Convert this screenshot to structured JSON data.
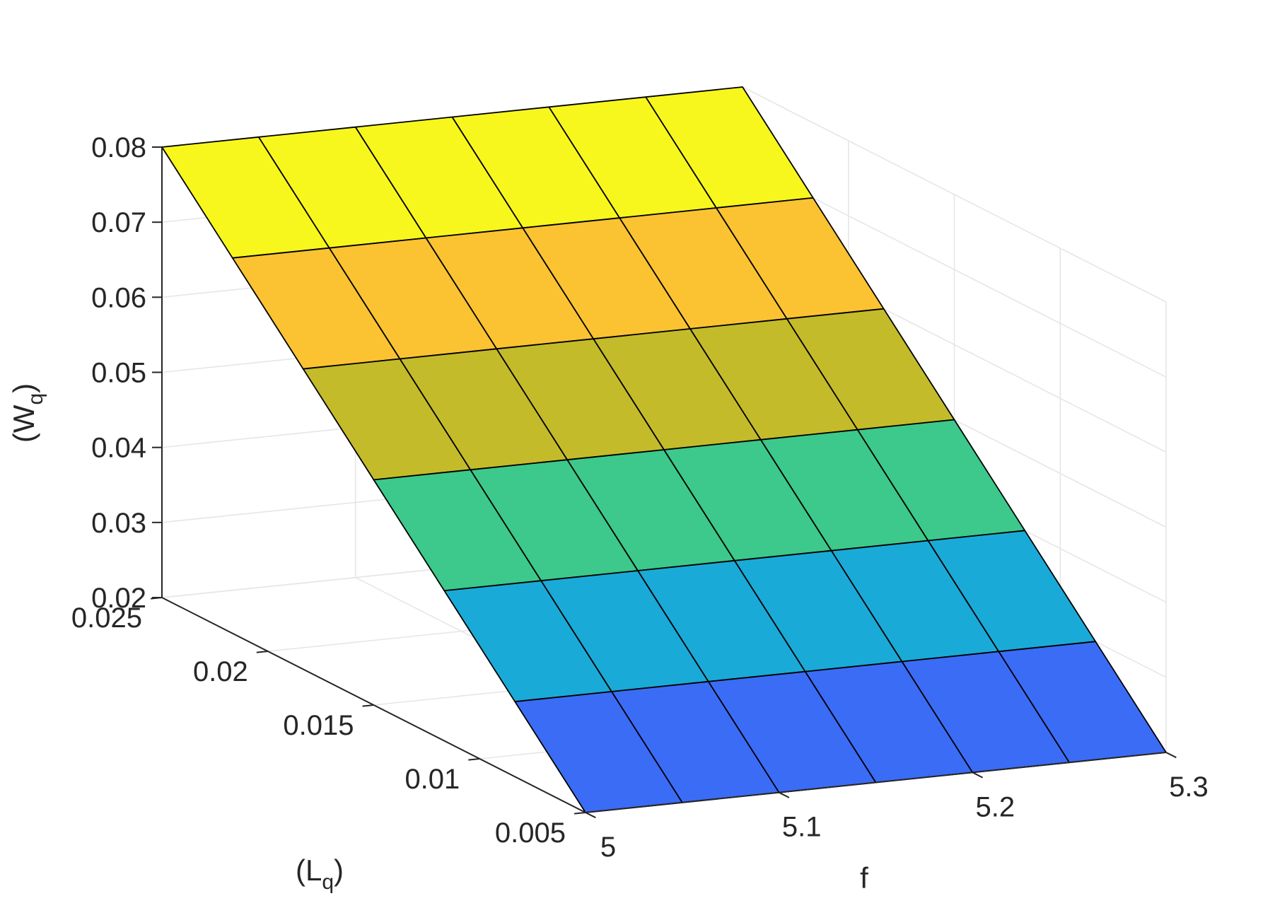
{
  "chart_data": {
    "type": "surface",
    "x": [
      5.0,
      5.05,
      5.1,
      5.15,
      5.2,
      5.25,
      5.3
    ],
    "y": [
      0.005,
      0.008333,
      0.011667,
      0.015,
      0.018333,
      0.021667,
      0.025
    ],
    "z": [
      [
        0.02,
        0.02,
        0.02,
        0.02,
        0.02,
        0.02,
        0.02
      ],
      [
        0.03,
        0.03,
        0.03,
        0.03,
        0.03,
        0.03,
        0.03
      ],
      [
        0.04,
        0.04,
        0.04,
        0.04,
        0.04,
        0.04,
        0.04
      ],
      [
        0.05,
        0.05,
        0.05,
        0.05,
        0.05,
        0.05,
        0.05
      ],
      [
        0.06,
        0.06,
        0.06,
        0.06,
        0.06,
        0.06,
        0.06
      ],
      [
        0.07,
        0.07,
        0.07,
        0.07,
        0.07,
        0.07,
        0.07
      ],
      [
        0.08,
        0.08,
        0.08,
        0.08,
        0.08,
        0.08,
        0.08
      ]
    ],
    "band_colors": [
      "#3b6cf6",
      "#1aaad8",
      "#3cc98b",
      "#c4bb2a",
      "#fbc332",
      "#f7f71e"
    ],
    "xlim": [
      5,
      5.3
    ],
    "ylim": [
      0.005,
      0.025
    ],
    "zlim": [
      0.02,
      0.08
    ],
    "xticks": [
      {
        "value": 5,
        "label": "5"
      },
      {
        "value": 5.1,
        "label": "5.1"
      },
      {
        "value": 5.2,
        "label": "5.2"
      },
      {
        "value": 5.3,
        "label": "5.3"
      }
    ],
    "yticks": [
      {
        "value": 0.005,
        "label": "0.005"
      },
      {
        "value": 0.01,
        "label": "0.01"
      },
      {
        "value": 0.015,
        "label": "0.015"
      },
      {
        "value": 0.02,
        "label": "0.02"
      },
      {
        "value": 0.025,
        "label": "0.025"
      }
    ],
    "zticks": [
      {
        "value": 0.02,
        "label": "0.02"
      },
      {
        "value": 0.03,
        "label": "0.03"
      },
      {
        "value": 0.04,
        "label": "0.04"
      },
      {
        "value": 0.05,
        "label": "0.05"
      },
      {
        "value": 0.06,
        "label": "0.06"
      },
      {
        "value": 0.07,
        "label": "0.07"
      },
      {
        "value": 0.08,
        "label": "0.08"
      }
    ],
    "xlabel": "f",
    "ylabel": {
      "base": "(L",
      "sub": "q",
      "close": ")"
    },
    "zlabel": {
      "base": "(W",
      "sub": "q",
      "close": ")"
    },
    "grid": true,
    "colors": {
      "grid": "#e6e6e6",
      "axis": "#262626",
      "edge": "#000000"
    }
  }
}
